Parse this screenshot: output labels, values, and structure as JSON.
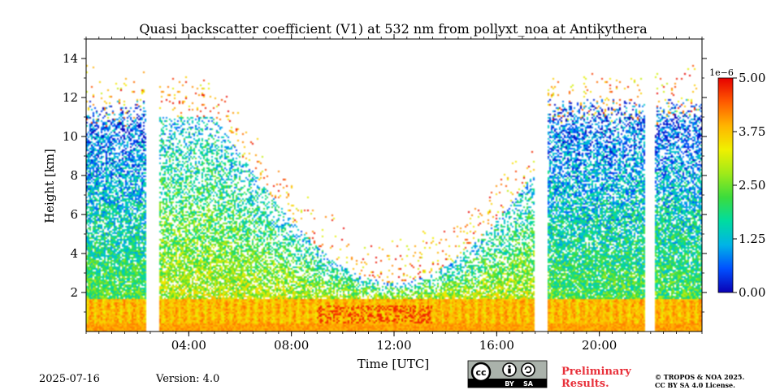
{
  "chart_data": {
    "type": "heatmap",
    "title": "Quasi backscatter coefficient (V1) at 532 nm from pollyxt_noa at Antikythera",
    "xlabel": "Time [UTC]",
    "ylabel": "Height [km]",
    "x_unit": "hours UTC",
    "xlim": [
      0,
      24
    ],
    "ylim": [
      0,
      15
    ],
    "x_ticks": [
      {
        "value": 4,
        "label": "04:00"
      },
      {
        "value": 8,
        "label": "08:00"
      },
      {
        "value": 12,
        "label": "12:00"
      },
      {
        "value": 16,
        "label": "16:00"
      },
      {
        "value": 20,
        "label": "20:00"
      }
    ],
    "y_ticks": [
      {
        "value": 2,
        "label": "2"
      },
      {
        "value": 4,
        "label": "4"
      },
      {
        "value": 6,
        "label": "6"
      },
      {
        "value": 8,
        "label": "8"
      },
      {
        "value": 10,
        "label": "10"
      },
      {
        "value": 12,
        "label": "12"
      },
      {
        "value": 14,
        "label": "14"
      }
    ],
    "colorbar": {
      "range": [
        0,
        5
      ],
      "exponent_label": "1e−6",
      "ticks": [
        {
          "value": 0,
          "label": "0.00"
        },
        {
          "value": 1.25,
          "label": "1.25"
        },
        {
          "value": 2.5,
          "label": "2.50"
        },
        {
          "value": 3.75,
          "label": "3.75"
        },
        {
          "value": 5,
          "label": "5.00"
        }
      ],
      "colormap": [
        "#0a00b4",
        "#0050ff",
        "#00b4e6",
        "#00dca0",
        "#3cdc3c",
        "#a0ea19",
        "#f0f000",
        "#ffb400",
        "#ff5a00",
        "#e60000"
      ]
    },
    "data_gaps_hours": [
      [
        2.33,
        2.83
      ],
      [
        17.5,
        18.0
      ],
      [
        21.83,
        22.17
      ]
    ],
    "grid": false
  },
  "footer": {
    "date": "2025-07-16",
    "version": "Version: 4.0",
    "license_badge_text": [
      "cc",
      "BY",
      "SA"
    ],
    "preliminary_line1": "Preliminary",
    "preliminary_line2": "Results.",
    "copyright_line1": "© TROPOS & NOA 2025.",
    "copyright_line2": "CC BY SA 4.0 License."
  }
}
